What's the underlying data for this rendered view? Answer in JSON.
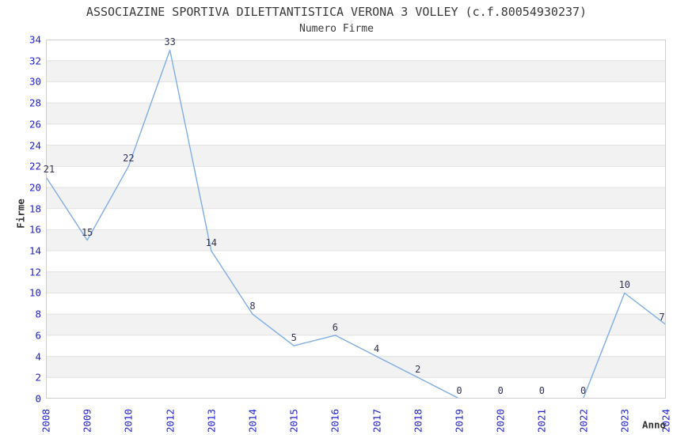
{
  "chart_data": {
    "type": "line",
    "title": "ASSOCIAZINE SPORTIVA DILETTANTISTICA VERONA 3 VOLLEY (c.f.80054930237)",
    "subtitle": "Numero Firme",
    "xlabel": "Anno",
    "ylabel": "Firme",
    "categories": [
      "2008",
      "2009",
      "2010",
      "2012",
      "2013",
      "2014",
      "2015",
      "2016",
      "2017",
      "2018",
      "2019",
      "2020",
      "2021",
      "2022",
      "2023",
      "2024"
    ],
    "values": [
      21,
      15,
      22,
      33,
      14,
      8,
      5,
      6,
      4,
      2,
      0,
      0,
      0,
      0,
      10,
      7
    ],
    "ylim": [
      0,
      34
    ],
    "ytick_step": 2,
    "show_point_labels": true,
    "grid": "horizontal-gridlines-with-alternating-bands",
    "legend": null,
    "colors": {
      "line": "#7fade6",
      "tick_label": "#2222cc",
      "point_label": "#333355",
      "band": "#f2f2f2",
      "band_alt": "#ffffff",
      "gridline": "#e2e2e2",
      "frame": "#cfcfcf",
      "title": "#3a3a3a",
      "axis_title": "#333333"
    }
  }
}
